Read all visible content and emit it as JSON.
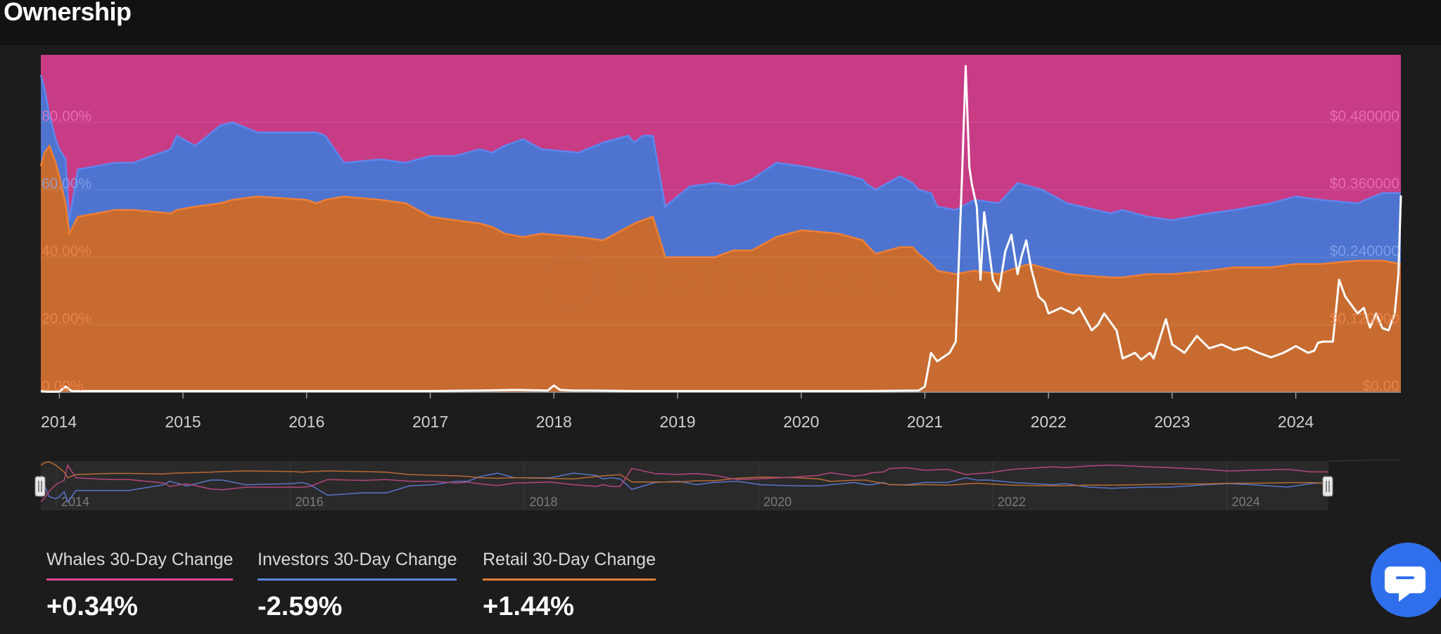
{
  "page": {
    "title": "Ownership"
  },
  "chart_data": {
    "type": "area",
    "stacked": true,
    "x_axis": {
      "min": 2013.85,
      "max": 2024.85,
      "ticks": [
        "2014",
        "2015",
        "2016",
        "2017",
        "2018",
        "2019",
        "2020",
        "2021",
        "2022",
        "2023",
        "2024"
      ]
    },
    "y_left": {
      "min": 0,
      "max": 100,
      "ticks": [
        "0.00%",
        "20.00%",
        "40.00%",
        "60.00%",
        "80.00%"
      ]
    },
    "y_right": {
      "min": 0,
      "max": 0.6,
      "ticks": [
        "$0.00",
        "$0.120000",
        "$0.240000",
        "$0.360000",
        "$0.480000"
      ]
    },
    "grid": true,
    "watermark": "IntoTheBlock",
    "colors": {
      "whales": "#c83c86",
      "investors": "#4e74d0",
      "retail": "#c76b30",
      "price": "#ffffff"
    },
    "series": [
      {
        "name": "Whales",
        "color": "#c83c86",
        "x": [
          2013.85,
          2014.6,
          2016.15,
          2017.4,
          2018.65,
          2018.72,
          2019.5,
          2020.5,
          2020.95,
          2021.1,
          2021.8,
          2021.95,
          2022.15,
          2022.6,
          2023.5,
          2024.5,
          2024.85
        ],
        "y": [
          100,
          100,
          100,
          100,
          100,
          100,
          100,
          100,
          100,
          100,
          100,
          100,
          100,
          100,
          100,
          100,
          100
        ]
      },
      {
        "name": "Investors",
        "color": "#4e74d0",
        "x": [
          2013.85,
          2013.88,
          2013.92,
          2013.97,
          2014.0,
          2014.05,
          2014.08,
          2014.15,
          2014.3,
          2014.45,
          2014.6,
          2014.9,
          2014.95,
          2015.1,
          2015.3,
          2015.4,
          2015.6,
          2016.0,
          2016.08,
          2016.15,
          2016.3,
          2016.6,
          2016.8,
          2017.0,
          2017.2,
          2017.4,
          2017.5,
          2017.6,
          2017.75,
          2017.9,
          2018.2,
          2018.4,
          2018.5,
          2018.6,
          2018.65,
          2018.72,
          2018.8,
          2018.9,
          2019.1,
          2019.3,
          2019.45,
          2019.6,
          2019.8,
          2020.0,
          2020.3,
          2020.5,
          2020.52,
          2020.6,
          2020.8,
          2020.9,
          2020.95,
          2021.05,
          2021.1,
          2021.25,
          2021.4,
          2021.6,
          2021.75,
          2021.85,
          2021.95,
          2022.15,
          2022.5,
          2022.6,
          2022.8,
          2023.0,
          2023.3,
          2023.5,
          2023.8,
          2024.0,
          2024.2,
          2024.5,
          2024.7,
          2024.85
        ],
        "y": [
          94,
          90,
          82,
          75,
          72,
          69,
          51,
          66,
          67,
          68,
          68,
          72,
          76,
          73,
          79,
          80,
          77,
          77,
          77,
          76,
          68,
          69,
          68,
          70,
          70,
          72,
          71,
          73,
          75,
          72,
          71,
          74,
          75,
          76,
          74,
          76,
          76,
          55,
          61,
          62,
          61,
          63,
          68,
          67,
          65,
          63,
          62,
          60,
          64,
          62,
          60,
          59,
          55,
          54,
          57,
          56,
          62,
          61,
          60,
          56,
          53,
          54,
          52,
          51,
          53,
          54,
          56,
          58,
          57,
          56,
          59,
          59
        ]
      },
      {
        "name": "Retail",
        "color": "#c76b30",
        "x": [
          2013.85,
          2013.88,
          2013.92,
          2013.97,
          2014.0,
          2014.05,
          2014.08,
          2014.15,
          2014.3,
          2014.45,
          2014.6,
          2014.9,
          2014.95,
          2015.1,
          2015.3,
          2015.4,
          2015.6,
          2016.0,
          2016.08,
          2016.15,
          2016.3,
          2016.6,
          2016.8,
          2017.0,
          2017.2,
          2017.4,
          2017.5,
          2017.6,
          2017.75,
          2017.9,
          2018.2,
          2018.4,
          2018.5,
          2018.6,
          2018.65,
          2018.72,
          2018.8,
          2018.9,
          2019.1,
          2019.3,
          2019.45,
          2019.6,
          2019.8,
          2020.0,
          2020.3,
          2020.5,
          2020.52,
          2020.6,
          2020.8,
          2020.9,
          2020.95,
          2021.05,
          2021.1,
          2021.25,
          2021.4,
          2021.6,
          2021.75,
          2021.85,
          2021.95,
          2022.15,
          2022.5,
          2022.6,
          2022.8,
          2023.0,
          2023.3,
          2023.5,
          2023.8,
          2024.0,
          2024.2,
          2024.5,
          2024.7,
          2024.85
        ],
        "y": [
          67,
          71,
          73,
          68,
          64,
          56,
          47,
          52,
          53,
          54,
          54,
          53,
          54,
          55,
          56,
          57,
          58,
          57,
          56,
          57,
          58,
          57,
          56,
          52,
          51,
          50,
          49,
          47,
          46,
          47,
          46,
          45,
          47,
          49,
          50,
          51,
          52,
          40,
          40,
          40,
          42,
          42,
          46,
          48,
          47,
          45,
          44,
          41,
          43,
          43,
          41,
          38,
          36,
          35,
          36,
          35,
          37,
          38,
          37,
          35,
          34,
          34,
          35,
          35,
          36,
          37,
          37,
          38,
          38,
          39,
          39,
          38
        ]
      },
      {
        "name": "Price",
        "color": "#ffffff",
        "axis": "right",
        "x": [
          2013.85,
          2013.9,
          2014.0,
          2014.05,
          2014.1,
          2014.2,
          2015.0,
          2016.0,
          2017.0,
          2017.4,
          2017.7,
          2017.95,
          2018.0,
          2018.05,
          2018.15,
          2018.3,
          2018.65,
          2019.0,
          2019.5,
          2020.0,
          2020.5,
          2020.95,
          2021.0,
          2021.05,
          2021.1,
          2021.2,
          2021.25,
          2021.3,
          2021.33,
          2021.36,
          2021.38,
          2021.42,
          2021.45,
          2021.48,
          2021.55,
          2021.6,
          2021.65,
          2021.7,
          2021.75,
          2021.78,
          2021.82,
          2021.86,
          2021.92,
          2021.97,
          2022.0,
          2022.1,
          2022.2,
          2022.25,
          2022.35,
          2022.4,
          2022.45,
          2022.55,
          2022.6,
          2022.7,
          2022.75,
          2022.82,
          2022.85,
          2022.95,
          2023.0,
          2023.1,
          2023.2,
          2023.3,
          2023.4,
          2023.5,
          2023.6,
          2023.7,
          2023.8,
          2023.9,
          2024.0,
          2024.1,
          2024.15,
          2024.18,
          2024.22,
          2024.26,
          2024.3,
          2024.35,
          2024.4,
          2024.5,
          2024.55,
          2024.6,
          2024.65,
          2024.7,
          2024.75,
          2024.8,
          2024.83,
          2024.85
        ],
        "y": [
          0.002,
          0.001,
          0.001,
          0.01,
          0.002,
          0.002,
          0.002,
          0.002,
          0.002,
          0.003,
          0.004,
          0.003,
          0.012,
          0.004,
          0.003,
          0.003,
          0.002,
          0.002,
          0.002,
          0.002,
          0.002,
          0.003,
          0.01,
          0.07,
          0.055,
          0.07,
          0.09,
          0.38,
          0.58,
          0.4,
          0.37,
          0.33,
          0.2,
          0.32,
          0.2,
          0.18,
          0.25,
          0.28,
          0.21,
          0.24,
          0.27,
          0.22,
          0.17,
          0.16,
          0.14,
          0.15,
          0.14,
          0.15,
          0.11,
          0.12,
          0.14,
          0.11,
          0.06,
          0.07,
          0.058,
          0.07,
          0.06,
          0.13,
          0.085,
          0.07,
          0.1,
          0.078,
          0.085,
          0.075,
          0.08,
          0.07,
          0.062,
          0.07,
          0.082,
          0.07,
          0.074,
          0.088,
          0.09,
          0.09,
          0.09,
          0.2,
          0.17,
          0.14,
          0.15,
          0.115,
          0.14,
          0.114,
          0.11,
          0.14,
          0.21,
          0.35
        ]
      }
    ],
    "navigator": {
      "labels": [
        "2014",
        "2016",
        "2018",
        "2020",
        "2022",
        "2024"
      ],
      "years": [
        2014,
        2016,
        2018,
        2020,
        2022,
        2024
      ],
      "x_min": 2013.85,
      "x_max": 2024.85
    }
  },
  "stats": [
    {
      "label": "Whales 30-Day Change",
      "value": "+0.34%",
      "color": "#e0459a"
    },
    {
      "label": "Investors 30-Day Change",
      "value": "-2.59%",
      "color": "#5b83e3"
    },
    {
      "label": "Retail 30-Day Change",
      "value": "+1.44%",
      "color": "#e07c35"
    }
  ]
}
